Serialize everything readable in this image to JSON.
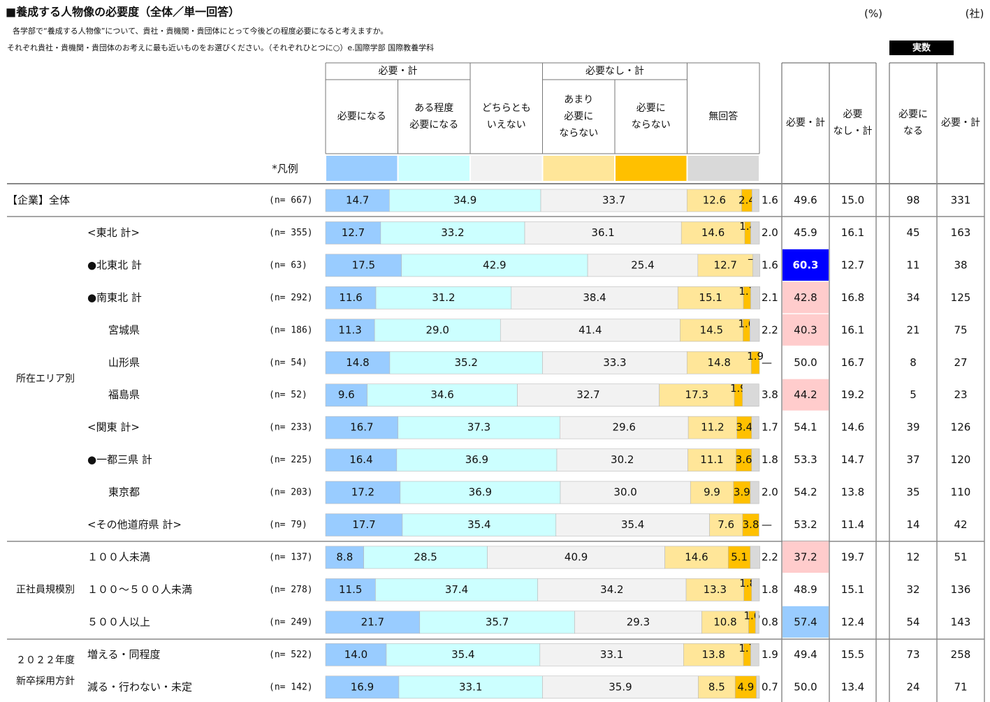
{
  "chart_data": {
    "type": "stacked_bar",
    "title": "■養成する人物像の必要度（全体／単一回答）",
    "subtitle": [
      "各学部で“養成する人物像”について、貴社・貴機関・貴団体にとって今後どの程度必要になると考えますか。",
      "それぞれ貴社・貴機関・貴団体のお考えに最も近いものをお選びください。（それぞれひとつに○）e.国際学部  国際教養学科"
    ],
    "unit_percent": "(%)",
    "unit_count": "(社)",
    "legend_label": "*凡例",
    "group_headers": [
      {
        "name": "必要・計",
        "from": 0,
        "to": 1
      },
      {
        "name": "必要なし・計",
        "from": 3,
        "to": 4
      }
    ],
    "xlim": [
      0,
      100
    ],
    "categories": [
      "【企業】全体",
      "<東北  計>",
      "●北東北  計",
      "●南東北  計",
      "宮城県",
      "山形県",
      "福島県",
      "<関東  計>",
      "●一都三県  計",
      "東京都",
      "<その他道府県  計>",
      "１００人未満",
      "１００～５００人未満",
      "５００人以上",
      "増える・同程度",
      "減る・行わない・未定"
    ],
    "n_labels": [
      "(n= 667)",
      "(n= 355)",
      "(n=  63)",
      "(n= 292)",
      "(n= 186)",
      "(n=  54)",
      "(n=  52)",
      "(n= 233)",
      "(n= 225)",
      "(n= 203)",
      "(n=  79)",
      "(n= 137)",
      "(n= 278)",
      "(n= 249)",
      "(n= 522)",
      "(n= 142)"
    ],
    "row_groups": [
      {
        "name": "所在エリア別",
        "from": 1,
        "to": 10
      },
      {
        "name": "正社員規模別",
        "from": 11,
        "to": 13
      },
      {
        "name": "２０２２年度\n新卒採用方針",
        "from": 14,
        "to": 15
      }
    ],
    "series": [
      {
        "name": "必要になる",
        "color": "#99ccff",
        "values": [
          14.7,
          12.7,
          17.5,
          11.6,
          11.3,
          14.8,
          9.6,
          16.7,
          16.4,
          17.2,
          17.7,
          8.8,
          11.5,
          21.7,
          14.0,
          16.9
        ],
        "value_labels": [
          "14.7",
          "12.7",
          "17.5",
          "11.6",
          "11.3",
          "14.8",
          "9.6",
          "16.7",
          "16.4",
          "17.2",
          "17.7",
          "8.8",
          "11.5",
          "21.7",
          "14.0",
          "16.9"
        ]
      },
      {
        "name": "ある程度\n必要になる",
        "color": "#ccffff",
        "values": [
          34.9,
          33.2,
          42.9,
          31.2,
          29.0,
          35.2,
          34.6,
          37.3,
          36.9,
          36.9,
          35.4,
          28.5,
          37.4,
          35.7,
          35.4,
          33.1
        ],
        "value_labels": [
          "34.9",
          "33.2",
          "42.9",
          "31.2",
          "29.0",
          "35.2",
          "34.6",
          "37.3",
          "36.9",
          "36.9",
          "35.4",
          "28.5",
          "37.4",
          "35.7",
          "35.4",
          "33.1"
        ]
      },
      {
        "name": "どちらとも\nいえない",
        "color": "#f2f2f2",
        "values": [
          33.7,
          36.1,
          25.4,
          38.4,
          41.4,
          33.3,
          32.7,
          29.6,
          30.2,
          30.0,
          35.4,
          40.9,
          34.2,
          29.3,
          33.1,
          35.9
        ],
        "value_labels": [
          "33.7",
          "36.1",
          "25.4",
          "38.4",
          "41.4",
          "33.3",
          "32.7",
          "29.6",
          "30.2",
          "30.0",
          "35.4",
          "40.9",
          "34.2",
          "29.3",
          "33.1",
          "35.9"
        ]
      },
      {
        "name": "あまり\n必要に\nならない",
        "color": "#ffe699",
        "values": [
          12.6,
          14.6,
          12.7,
          15.1,
          14.5,
          14.8,
          17.3,
          11.2,
          11.1,
          9.9,
          7.6,
          14.6,
          13.3,
          10.8,
          13.8,
          8.5
        ],
        "value_labels": [
          "12.6",
          "14.6",
          "12.7",
          "15.1",
          "14.5",
          "14.8",
          "17.3",
          "11.2",
          "11.1",
          "9.9",
          "7.6",
          "14.6",
          "13.3",
          "10.8",
          "13.8",
          "8.5"
        ]
      },
      {
        "name": "必要に\nならない",
        "color": "#ffc000",
        "values": [
          2.4,
          1.4,
          0,
          1.7,
          1.6,
          1.9,
          1.9,
          3.4,
          3.6,
          3.9,
          3.8,
          5.1,
          1.8,
          1.6,
          1.7,
          4.9
        ],
        "value_labels": [
          "2.4",
          "1.4",
          "—",
          "1.7",
          "1.6",
          "1.9",
          "1.9",
          "3.4",
          "3.6",
          "3.9",
          "3.8",
          "5.1",
          "1.8",
          "1.6",
          "1.7",
          "4.9"
        ]
      },
      {
        "name": "無回答",
        "color": "#d9d9d9",
        "values": [
          1.6,
          2.0,
          1.6,
          2.1,
          2.2,
          0,
          3.8,
          1.7,
          1.8,
          2.0,
          0,
          2.2,
          1.8,
          0.8,
          1.9,
          0.7
        ],
        "value_labels": [
          "1.6",
          "2.0",
          "1.6",
          "2.1",
          "2.2",
          "—",
          "3.8",
          "1.7",
          "1.8",
          "2.0",
          "—",
          "2.2",
          "1.8",
          "0.8",
          "1.9",
          "0.7"
        ]
      }
    ],
    "summary": [
      {
        "name": "必要・計",
        "values": [
          49.6,
          45.9,
          60.3,
          42.8,
          40.3,
          50.0,
          44.2,
          54.1,
          53.3,
          54.2,
          53.2,
          37.2,
          48.9,
          57.4,
          49.4,
          50.0
        ],
        "value_labels": [
          "49.6",
          "45.9",
          "60.3",
          "42.8",
          "40.3",
          "50.0",
          "44.2",
          "54.1",
          "53.3",
          "54.2",
          "53.2",
          "37.2",
          "48.9",
          "57.4",
          "49.4",
          "50.0"
        ],
        "cell_colors": [
          null,
          null,
          "#0000ff",
          "#ffcccc",
          "#ffcccc",
          null,
          "#ffcccc",
          null,
          null,
          null,
          null,
          "#ffcccc",
          null,
          "#99ccff",
          null,
          null
        ]
      },
      {
        "name": "必要\nなし・計",
        "values": [
          15.0,
          16.1,
          12.7,
          16.8,
          16.1,
          16.7,
          19.2,
          14.6,
          14.7,
          13.8,
          11.4,
          19.7,
          15.1,
          12.4,
          15.5,
          13.4
        ],
        "value_labels": [
          "15.0",
          "16.1",
          "12.7",
          "16.8",
          "16.1",
          "16.7",
          "19.2",
          "14.6",
          "14.7",
          "13.8",
          "11.4",
          "19.7",
          "15.1",
          "12.4",
          "15.5",
          "13.4"
        ]
      }
    ],
    "counts_header": "実数",
    "counts": [
      {
        "name": "必要に\nなる",
        "values": [
          98,
          45,
          11,
          34,
          21,
          8,
          5,
          39,
          37,
          35,
          14,
          12,
          32,
          54,
          73,
          24
        ]
      },
      {
        "name": "必要・計",
        "values": [
          331,
          163,
          38,
          125,
          75,
          27,
          23,
          126,
          120,
          110,
          42,
          51,
          136,
          143,
          258,
          71
        ]
      }
    ]
  }
}
